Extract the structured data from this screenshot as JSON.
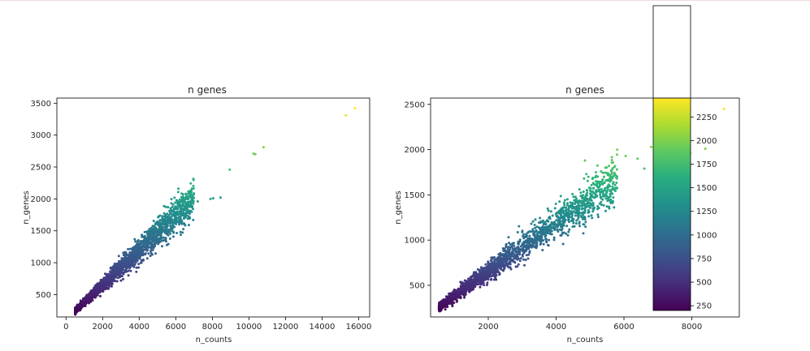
{
  "chart_data": [
    {
      "type": "scatter",
      "title": "n genes",
      "xlabel": "n_counts",
      "ylabel": "n_genes",
      "xlim": [
        -500,
        16600
      ],
      "ylim": [
        150,
        3580
      ],
      "xticks": [
        0,
        2000,
        4000,
        6000,
        8000,
        10000,
        12000,
        14000,
        16000
      ],
      "yticks": [
        500,
        1000,
        1500,
        2000,
        2500,
        3000,
        3500
      ],
      "colormap": "viridis",
      "color_by": "n_genes",
      "cloud": {
        "x_min": 500,
        "x_max": 7000,
        "slope": 0.27,
        "intercept": 110,
        "spread": 0.09,
        "n": 2400
      },
      "points": [
        {
          "x": 15300,
          "y": 3310
        },
        {
          "x": 15800,
          "y": 3420
        },
        {
          "x": 10250,
          "y": 2710
        },
        {
          "x": 10350,
          "y": 2700
        },
        {
          "x": 10800,
          "y": 2810
        },
        {
          "x": 8950,
          "y": 2460
        },
        {
          "x": 7900,
          "y": 2000
        },
        {
          "x": 8050,
          "y": 2010
        },
        {
          "x": 8450,
          "y": 2020
        },
        {
          "x": 7200,
          "y": 1960
        },
        {
          "x": 6900,
          "y": 2030
        },
        {
          "x": 6500,
          "y": 1950
        },
        {
          "x": 6200,
          "y": 1880
        },
        {
          "x": 6000,
          "y": 1700
        },
        {
          "x": 6550,
          "y": 1850
        }
      ]
    },
    {
      "type": "scatter",
      "title": "n genes",
      "xlabel": "n_counts",
      "ylabel": "n_genes",
      "xlim": [
        300,
        9400
      ],
      "ylim": [
        150,
        2570
      ],
      "xticks": [
        2000,
        4000,
        6000,
        8000
      ],
      "yticks": [
        500,
        1000,
        1500,
        2000,
        2500
      ],
      "colormap": "viridis",
      "color_by": "n_genes",
      "cloud": {
        "x_min": 550,
        "x_max": 5800,
        "slope": 0.27,
        "intercept": 110,
        "spread": 0.09,
        "n": 2400
      },
      "points": [
        {
          "x": 8950,
          "y": 2450
        },
        {
          "x": 8400,
          "y": 2010
        },
        {
          "x": 7950,
          "y": 1960
        },
        {
          "x": 7300,
          "y": 2080
        },
        {
          "x": 7150,
          "y": 1950
        },
        {
          "x": 6800,
          "y": 2030
        },
        {
          "x": 6600,
          "y": 1790
        },
        {
          "x": 6400,
          "y": 1900
        },
        {
          "x": 6050,
          "y": 1930
        },
        {
          "x": 5800,
          "y": 2000
        },
        {
          "x": 5450,
          "y": 1800
        },
        {
          "x": 4950,
          "y": 1700
        },
        {
          "x": 4850,
          "y": 1880
        }
      ],
      "colorbar": {
        "ticks": [
          250,
          500,
          750,
          1000,
          1250,
          1500,
          1750,
          2000,
          2250
        ],
        "range": [
          200,
          2450
        ]
      }
    }
  ]
}
